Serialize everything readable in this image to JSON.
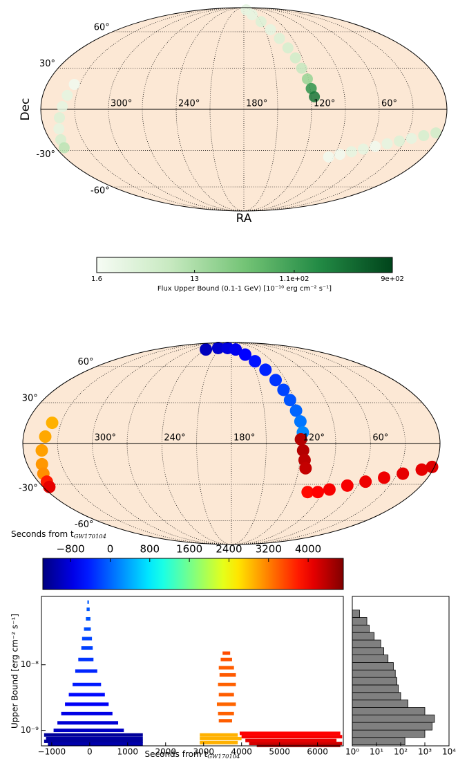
{
  "chart_data": [
    {
      "type": "skymap",
      "ylabel": "Dec",
      "xlabel": "RA",
      "colormap": "greens",
      "lon_ticks": [
        {
          "value": 300,
          "label": "300°"
        },
        {
          "value": 240,
          "label": "240°"
        },
        {
          "value": 180,
          "label": "180°"
        },
        {
          "value": 120,
          "label": "120°"
        },
        {
          "value": 60,
          "label": "60°"
        }
      ],
      "lat_ticks": [
        {
          "value": 60,
          "label": "60°"
        },
        {
          "value": 30,
          "label": "30°"
        },
        {
          "value": -30,
          "label": "-30°"
        },
        {
          "value": -60,
          "label": "-60°"
        }
      ],
      "series": [
        {
          "ra": [
            170,
            160,
            150,
            142,
            136,
            131,
            127,
            124,
            121,
            119,
            117
          ],
          "dec": [
            85,
            78,
            70,
            62,
            54,
            46,
            38,
            30,
            22,
            15,
            9
          ],
          "values": [
            3,
            3,
            4,
            3,
            4,
            5,
            6,
            8,
            20,
            150,
            300
          ]
        },
        {
          "ra": [
            335,
            338,
            341,
            344,
            347,
            350,
            352
          ],
          "dec": [
            18,
            10,
            2,
            -6,
            -14,
            -22,
            -28
          ],
          "values": [
            2,
            3,
            3,
            4,
            3,
            5,
            10
          ]
        },
        {
          "ra": [
            95,
            85,
            75,
            65,
            55,
            45,
            35,
            25,
            15,
            5
          ],
          "dec": [
            -35,
            -33,
            -31,
            -29,
            -27,
            -25,
            -23,
            -21,
            -19,
            -17
          ],
          "values": [
            2,
            2,
            3,
            3,
            2,
            3,
            4,
            3,
            5,
            6
          ]
        }
      ],
      "colorbar": {
        "label": "Flux Upper Bound (0.1-1 GeV) [10⁻¹⁰ erg cm⁻² s⁻¹]",
        "clim": [
          1.6,
          900
        ],
        "scale": "log",
        "ticks": [
          1.6,
          13,
          {
            "value": 110,
            "label": "1.1e+02"
          },
          {
            "value": 900,
            "label": "9e+02"
          }
        ]
      }
    },
    {
      "type": "skymap",
      "colormap": "jet",
      "lon_ticks": [
        {
          "value": 300,
          "label": "300°"
        },
        {
          "value": 240,
          "label": "240°"
        },
        {
          "value": 180,
          "label": "180°"
        },
        {
          "value": 120,
          "label": "120°"
        },
        {
          "value": 60,
          "label": "60°"
        }
      ],
      "lat_ticks": [
        {
          "value": 60,
          "label": "60°"
        },
        {
          "value": 30,
          "label": "30°"
        },
        {
          "value": -30,
          "label": "-30°"
        },
        {
          "value": -60,
          "label": "-60°"
        }
      ],
      "series": [
        {
          "ra": [
            240,
            215,
            190,
            170,
            155,
            145,
            137,
            131,
            127,
            124,
            121,
            119,
            118
          ],
          "dec": [
            78,
            80,
            80,
            78,
            72,
            65,
            57,
            48,
            40,
            32,
            24,
            16,
            8
          ],
          "values": [
            -1000,
            -900,
            -800,
            -700,
            -600,
            -500,
            -400,
            -300,
            -200,
            -100,
            0,
            100,
            200
          ]
        },
        {
          "ra": [
            120,
            118,
            116,
            114
          ],
          "dec": [
            3,
            -5,
            -12,
            -18
          ],
          "values": [
            4400,
            4400,
            4350,
            4300
          ]
        },
        {
          "ra": [
            338,
            341,
            344,
            347,
            350,
            352,
            354
          ],
          "dec": [
            15,
            5,
            -5,
            -15,
            -22,
            -28,
            -32
          ],
          "values": [
            2900,
            2950,
            3000,
            3050,
            3100,
            3800,
            4100
          ]
        },
        {
          "ra": [
            105,
            95,
            85,
            70,
            55,
            40,
            25,
            10,
            2
          ],
          "dec": [
            -36,
            -36,
            -34,
            -31,
            -28,
            -25,
            -22,
            -19,
            -17
          ],
          "values": [
            3900,
            3950,
            4000,
            4000,
            4050,
            4050,
            4100,
            4100,
            4150
          ]
        }
      ]
    },
    {
      "type": "segments",
      "colormap": "jet",
      "xlabel": {
        "text": "Seconds from t",
        "sub": "GW170104"
      },
      "ylabel": "Upper Bound [erg cm⁻² s⁻¹]",
      "xlim": [
        -1270,
        6680
      ],
      "ylim": [
        5.8e-10,
        1.1e-07
      ],
      "yscale": "log",
      "xticks": [
        {
          "value": -1000,
          "label": "−1000"
        },
        0,
        1000,
        2000,
        3000,
        4000,
        5000,
        6000
      ],
      "yticks": [
        {
          "value": 1e-09,
          "label": "10⁻⁹"
        },
        {
          "value": 1e-08,
          "label": "10⁻⁸"
        }
      ],
      "segments": {
        "start": [
          -60,
          -80,
          -100,
          -150,
          -200,
          -220,
          -300,
          -380,
          -450,
          -550,
          -650,
          -750,
          -850,
          -950,
          -1200,
          -1150,
          -1200,
          -1100,
          3500,
          3450,
          3400,
          3420,
          3380,
          3400,
          3350,
          3380,
          3400,
          2900,
          2900,
          2900,
          3950,
          4000,
          4100,
          4200,
          4400
        ],
        "end": [
          -20,
          0,
          20,
          30,
          60,
          80,
          100,
          200,
          300,
          400,
          500,
          600,
          750,
          900,
          1400,
          1400,
          1400,
          1400,
          3700,
          3750,
          3800,
          3850,
          3850,
          3800,
          3850,
          3800,
          3750,
          3900,
          4000,
          3900,
          6600,
          6650,
          6500,
          6650,
          6600
        ],
        "values": [
          9e-08,
          7e-08,
          5e-08,
          3.5e-08,
          2.5e-08,
          1.8e-08,
          1.2e-08,
          8e-09,
          5e-09,
          3.5e-09,
          2.5e-09,
          1.8e-09,
          1.3e-09,
          1e-09,
          8.5e-10,
          7.5e-10,
          6.8e-10,
          6.2e-10,
          1.5e-08,
          1.2e-08,
          9e-09,
          7e-09,
          5e-09,
          3.5e-09,
          2.5e-09,
          1.8e-09,
          1.4e-09,
          8.5e-10,
          7.5e-10,
          6.5e-10,
          9e-10,
          8e-10,
          7e-10,
          6.3e-10,
          5.9e-10
        ]
      },
      "colorbar": {
        "label": {
          "text": "Seconds from t",
          "sub": "GW170104"
        },
        "clim": [
          -1360,
          4710
        ],
        "ticks": [
          {
            "value": -800,
            "label": "−800"
          },
          0,
          800,
          1600,
          2400,
          3200,
          4000
        ]
      }
    },
    {
      "type": "histogram",
      "orientation": "horizontal",
      "color": "#808080",
      "bins": [
        6e-10,
        7.8e-10,
        1.01e-09,
        1.32e-09,
        1.72e-09,
        2.23e-09,
        2.9e-09,
        3.78e-09,
        4.92e-09,
        6.4e-09,
        8.32e-09,
        1.08e-08,
        1.41e-08,
        1.83e-08,
        2.38e-08,
        3.1e-08,
        4.03e-08,
        5.24e-08,
        6.81e-08
      ],
      "values": [
        150,
        1000,
        2000,
        2500,
        1000,
        200,
        100,
        80,
        70,
        60,
        50,
        30,
        20,
        15,
        8,
        5,
        4,
        2
      ],
      "xlim": [
        1,
        10000
      ],
      "xscale": "log",
      "ylim": [
        5.8e-10,
        1.1e-07
      ],
      "yscale": "log",
      "xticks": [
        {
          "value": 1,
          "label": "10⁰"
        },
        {
          "value": 10,
          "label": "10¹"
        },
        {
          "value": 100,
          "label": "10²"
        },
        {
          "value": 1000,
          "label": "10³"
        },
        {
          "value": 10000,
          "label": "10⁴"
        }
      ]
    }
  ]
}
